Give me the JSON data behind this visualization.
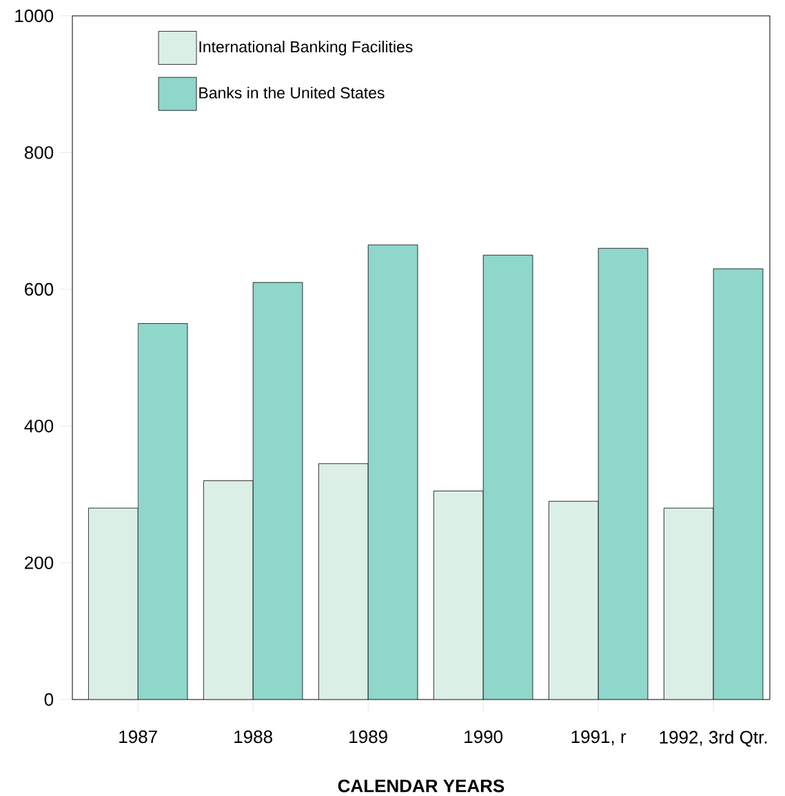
{
  "chart_data": {
    "type": "bar",
    "xlabel": "**CALENDAR YEARS**",
    "categories": [
      "1987",
      "1988",
      "1989",
      "1990",
      "1991, r",
      "1992, 3rd Qtr."
    ],
    "series": [
      {
        "name": "International Banking Facilities",
        "color": "#dcefe6",
        "values": [
          280,
          320,
          345,
          305,
          290,
          280
        ]
      },
      {
        "name": "Banks in the United States",
        "color": "#8fd6cb",
        "values": [
          550,
          610,
          665,
          650,
          660,
          630
        ]
      }
    ],
    "ylim": [
      0,
      1000
    ],
    "yticks": [
      0,
      200,
      400,
      600,
      800,
      1000
    ],
    "grid": false,
    "legend": "top left"
  }
}
